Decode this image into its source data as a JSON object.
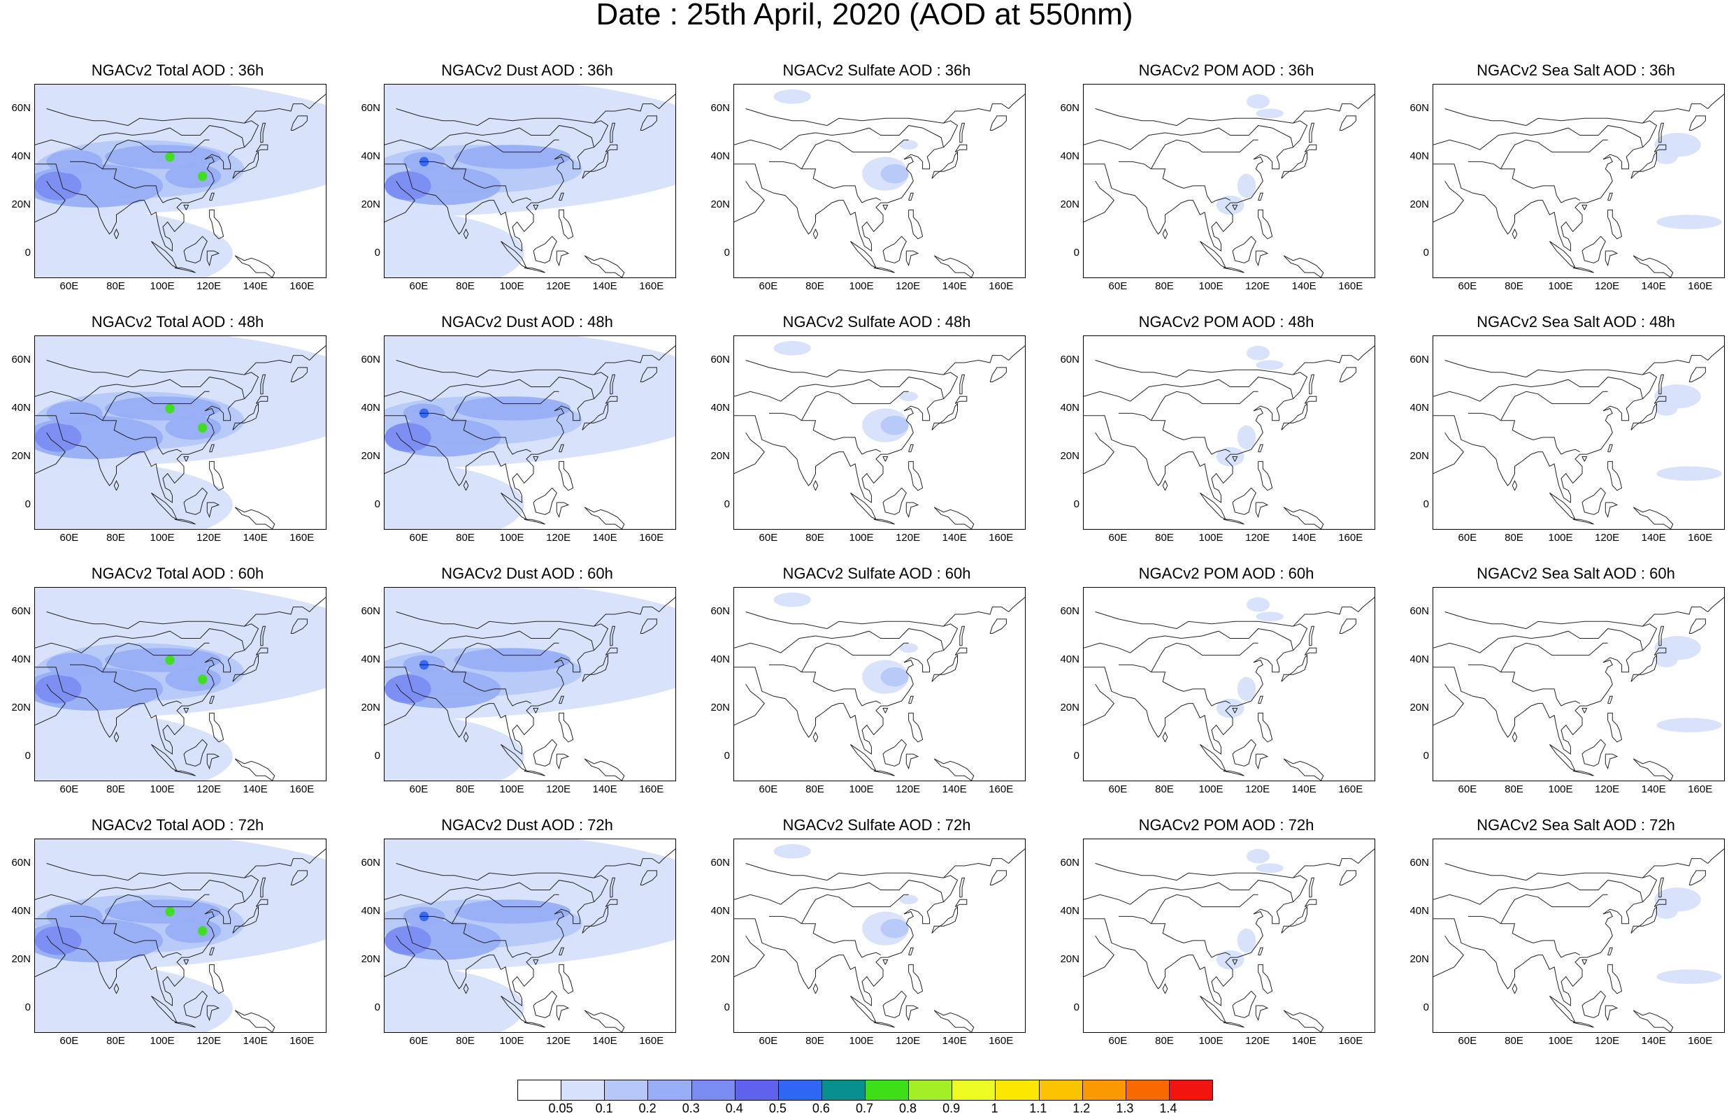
{
  "title": "Date : 25th April, 2020 (AOD at 550nm)",
  "lat_ticks": [
    "60N",
    "40N",
    "20N",
    "0"
  ],
  "lon_ticks": [
    "60E",
    "80E",
    "100E",
    "120E",
    "140E",
    "160E"
  ],
  "colorbar": {
    "levels": [
      "0.05",
      "0.1",
      "0.2",
      "0.3",
      "0.4",
      "0.5",
      "0.6",
      "0.7",
      "0.8",
      "0.9",
      "1",
      "1.1",
      "1.2",
      "1.3",
      "1.4"
    ],
    "colors": [
      "#ffffff",
      "#d6e2fb",
      "#b6c8f8",
      "#98aef6",
      "#7b8df2",
      "#5d63ec",
      "#2f66f4",
      "#0a8f8f",
      "#3ede18",
      "#a4ee28",
      "#eefb22",
      "#fce700",
      "#fcc300",
      "#fb9a00",
      "#f86a00",
      "#f2150f"
    ]
  },
  "panels": [
    {
      "title": "NGACv2 Total AOD : 36h",
      "species": "total"
    },
    {
      "title": "NGACv2 Dust AOD : 36h",
      "species": "dust"
    },
    {
      "title": "NGACv2 Sulfate AOD : 36h",
      "species": "sulfate"
    },
    {
      "title": "NGACv2 POM AOD : 36h",
      "species": "pom"
    },
    {
      "title": "NGACv2 Sea Salt AOD : 36h",
      "species": "seasalt"
    },
    {
      "title": "NGACv2 Total AOD : 48h",
      "species": "total"
    },
    {
      "title": "NGACv2 Dust AOD : 48h",
      "species": "dust"
    },
    {
      "title": "NGACv2 Sulfate AOD : 48h",
      "species": "sulfate"
    },
    {
      "title": "NGACv2 POM AOD : 48h",
      "species": "pom"
    },
    {
      "title": "NGACv2 Sea Salt AOD : 48h",
      "species": "seasalt"
    },
    {
      "title": "NGACv2 Total AOD : 60h",
      "species": "total"
    },
    {
      "title": "NGACv2 Dust AOD : 60h",
      "species": "dust"
    },
    {
      "title": "NGACv2 Sulfate AOD : 60h",
      "species": "sulfate"
    },
    {
      "title": "NGACv2 POM AOD : 60h",
      "species": "pom"
    },
    {
      "title": "NGACv2 Sea Salt AOD : 60h",
      "species": "seasalt"
    },
    {
      "title": "NGACv2 Total AOD : 72h",
      "species": "total"
    },
    {
      "title": "NGACv2 Dust AOD : 72h",
      "species": "dust"
    },
    {
      "title": "NGACv2 Sulfate AOD : 72h",
      "species": "sulfate"
    },
    {
      "title": "NGACv2 POM AOD : 72h",
      "species": "pom"
    },
    {
      "title": "NGACv2 Sea Salt  AOD : 72h",
      "species": "seasalt"
    }
  ]
}
